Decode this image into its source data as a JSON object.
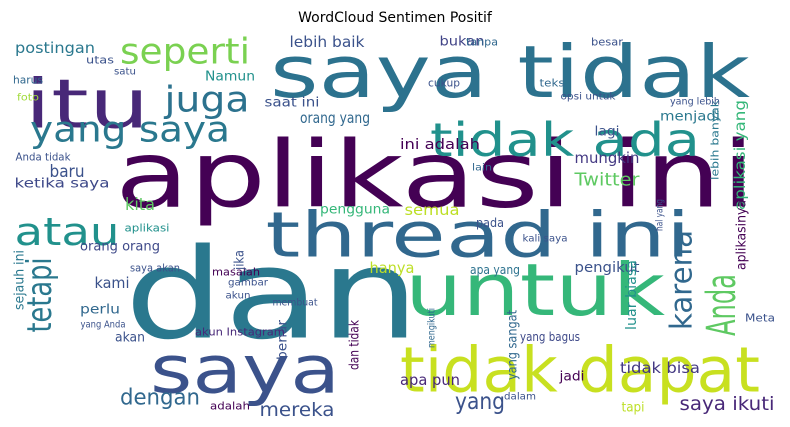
{
  "chart_data": {
    "type": "wordcloud",
    "title": "WordCloud Sentimen Positif",
    "words": [
      {
        "text": "aplikasi ini",
        "color": "#440154"
      },
      {
        "text": "dan",
        "color": "#2a788e"
      },
      {
        "text": "saya tidak",
        "color": "#2c728e"
      },
      {
        "text": "thread ini",
        "color": "#31688e"
      },
      {
        "text": "untuk",
        "color": "#35b779"
      },
      {
        "text": "tidak dapat",
        "color": "#c8e020"
      },
      {
        "text": "saya",
        "color": "#3b528b"
      },
      {
        "text": "itu",
        "color": "#482878"
      },
      {
        "text": "tidak ada",
        "color": "#21918c"
      },
      {
        "text": "seperti",
        "color": "#7ad151"
      },
      {
        "text": "juga",
        "color": "#2c728e"
      },
      {
        "text": "yang saya",
        "color": "#2a788e"
      },
      {
        "text": "atau",
        "color": "#21918c"
      },
      {
        "text": "tetapi",
        "color": "#2a788e"
      },
      {
        "text": "Anda",
        "color": "#5ec962"
      },
      {
        "text": "karena",
        "color": "#31688e"
      },
      {
        "text": "yang",
        "color": "#3b528b"
      },
      {
        "text": "dengan",
        "color": "#31688e"
      },
      {
        "text": "mereka",
        "color": "#3b528b"
      },
      {
        "text": "saya ikuti",
        "color": "#482878"
      },
      {
        "text": "tidak bisa",
        "color": "#443983"
      },
      {
        "text": "lebih baik",
        "color": "#3b528b"
      },
      {
        "text": "bukan",
        "color": "#414487"
      },
      {
        "text": "postingan",
        "color": "#2a788e"
      },
      {
        "text": "Twitter",
        "color": "#5ec962"
      },
      {
        "text": "baru",
        "color": "#3b528b"
      },
      {
        "text": "ketika saya",
        "color": "#3e4989"
      },
      {
        "text": "kita",
        "color": "#5ec962"
      },
      {
        "text": "mungkin",
        "color": "#443983"
      },
      {
        "text": "menjadi",
        "color": "#2a788e"
      },
      {
        "text": "ini adalah",
        "color": "#440154"
      },
      {
        "text": "orang yang",
        "color": "#31688e"
      },
      {
        "text": "saat ini",
        "color": "#3b528b"
      },
      {
        "text": "Namun",
        "color": "#21918c"
      },
      {
        "text": "hanya",
        "color": "#bddf26"
      },
      {
        "text": "pengguna",
        "color": "#35b779"
      },
      {
        "text": "semua",
        "color": "#bddf26"
      },
      {
        "text": "apa yang",
        "color": "#2c728e"
      },
      {
        "text": "pengikut",
        "color": "#3b528b"
      },
      {
        "text": "luar biasa",
        "color": "#21918c"
      },
      {
        "text": "aplikasi yang",
        "color": "#35b779"
      },
      {
        "text": "aplikasinya",
        "color": "#440154"
      },
      {
        "text": "lebih banyak",
        "color": "#2a788e"
      },
      {
        "text": "benar",
        "color": "#3b528b"
      },
      {
        "text": "dan tidak",
        "color": "#440154"
      },
      {
        "text": "apa pun",
        "color": "#482878"
      },
      {
        "text": "yang bagus",
        "color": "#3e4989"
      },
      {
        "text": "yang sangat",
        "color": "#31688e"
      },
      {
        "text": "kami",
        "color": "#3b528b"
      },
      {
        "text": "perlu",
        "color": "#31688e"
      },
      {
        "text": "akan",
        "color": "#3b528b"
      },
      {
        "text": "orang orang",
        "color": "#3e4989"
      },
      {
        "text": "masalah",
        "color": "#440154"
      },
      {
        "text": "jika",
        "color": "#3b528b"
      },
      {
        "text": "lagi",
        "color": "#3b528b"
      },
      {
        "text": "jadi",
        "color": "#440154"
      },
      {
        "text": "tapi",
        "color": "#bddf26"
      },
      {
        "text": "Meta",
        "color": "#3b528b"
      },
      {
        "text": "cukup",
        "color": "#3b528b"
      },
      {
        "text": "teks",
        "color": "#31688e"
      },
      {
        "text": "sejauh ini",
        "color": "#2a788e"
      },
      {
        "text": "akun Instagram",
        "color": "#482878"
      },
      {
        "text": "saya akan",
        "color": "#3b528b"
      },
      {
        "text": "aplikasi",
        "color": "#21918c"
      },
      {
        "text": "adalah",
        "color": "#440154"
      },
      {
        "text": "lain",
        "color": "#31688e"
      },
      {
        "text": "pada",
        "color": "#3b528b"
      },
      {
        "text": "dalam",
        "color": "#3b528b"
      },
      {
        "text": "besar",
        "color": "#3b528b"
      },
      {
        "text": "harus",
        "color": "#31688e"
      },
      {
        "text": "foto",
        "color": "#a0da39"
      },
      {
        "text": "utas",
        "color": "#3b528b"
      },
      {
        "text": "satu",
        "color": "#3b528b"
      },
      {
        "text": "opsi untuk",
        "color": "#3b528b"
      },
      {
        "text": "yang lebih",
        "color": "#3b528b"
      },
      {
        "text": "hal yang",
        "color": "#3b528b"
      },
      {
        "text": "tanpa",
        "color": "#31688e"
      },
      {
        "text": "Anda tidak",
        "color": "#3b528b"
      },
      {
        "text": "gambar",
        "color": "#3b528b"
      },
      {
        "text": "akun",
        "color": "#3b528b"
      },
      {
        "text": "membuat",
        "color": "#3b528b"
      },
      {
        "text": "kali saya",
        "color": "#3b528b"
      },
      {
        "text": "mengikuti",
        "color": "#31688e"
      },
      {
        "text": "yang Anda",
        "color": "#3b528b"
      }
    ]
  }
}
